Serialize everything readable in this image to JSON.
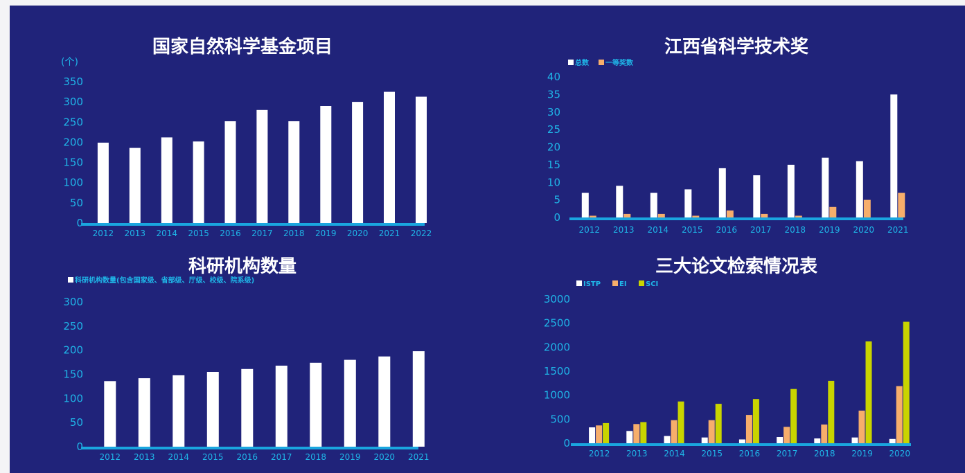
{
  "colors": {
    "background": "#20237a",
    "axis": "#1aa6df",
    "tick_text": "#1fb6e8",
    "white_bar": "#ffffff",
    "orange_bar": "#f7ae6b",
    "green_bar": "#c9d400"
  },
  "chart_data": [
    {
      "type": "bar",
      "title": "国家自然科学基金项目",
      "unit_label": "(个)",
      "categories": [
        "2012",
        "2013",
        "2014",
        "2015",
        "2016",
        "2017",
        "2018",
        "2019",
        "2020",
        "2021",
        "2022"
      ],
      "series": [
        {
          "values": [
            199,
            186,
            212,
            202,
            252,
            280,
            252,
            290,
            300,
            325,
            313
          ]
        }
      ],
      "ylim": [
        0,
        350
      ],
      "yticks": [
        0,
        50,
        100,
        150,
        200,
        250,
        300,
        350
      ],
      "grid": false
    },
    {
      "type": "bar",
      "title": "江西省科学技术奖",
      "categories": [
        "2012",
        "2013",
        "2014",
        "2015",
        "2016",
        "2017",
        "2018",
        "2019",
        "2020",
        "2021"
      ],
      "series": [
        {
          "name": "总数",
          "values": [
            7,
            9,
            7,
            8,
            14,
            12,
            15,
            17,
            16,
            35
          ]
        },
        {
          "name": "一等奖数",
          "values": [
            0.5,
            1,
            1,
            0.5,
            2,
            1,
            0.5,
            3,
            5,
            7
          ]
        }
      ],
      "ylim": [
        0,
        40
      ],
      "yticks": [
        0,
        5,
        10,
        15,
        20,
        25,
        30,
        35,
        40
      ],
      "legend": "top-left",
      "grid": false
    },
    {
      "type": "bar",
      "title": "科研机构数量",
      "categories": [
        "2012",
        "2013",
        "2014",
        "2015",
        "2016",
        "2017",
        "2018",
        "2019",
        "2020",
        "2021"
      ],
      "series": [
        {
          "name": "科研机构数量(包含国家级、省部级、厅级、校级、院系级)",
          "values": [
            136,
            142,
            148,
            155,
            161,
            168,
            174,
            180,
            187,
            198
          ]
        }
      ],
      "ylim": [
        0,
        300
      ],
      "yticks": [
        0,
        50,
        100,
        150,
        200,
        250,
        300
      ],
      "legend": "top-left",
      "grid": false
    },
    {
      "type": "bar",
      "title": "三大论文检索情况表",
      "categories": [
        "2012",
        "2013",
        "2014",
        "2015",
        "2016",
        "2017",
        "2018",
        "2019",
        "2020"
      ],
      "series": [
        {
          "name": "ISTP",
          "values": [
            330,
            255,
            150,
            120,
            80,
            130,
            100,
            120,
            90
          ]
        },
        {
          "name": "EI",
          "values": [
            370,
            400,
            480,
            480,
            590,
            340,
            390,
            680,
            1190
          ]
        },
        {
          "name": "SCI",
          "values": [
            420,
            440,
            870,
            820,
            920,
            1130,
            1300,
            2120,
            2530
          ]
        }
      ],
      "ylim": [
        0,
        3000
      ],
      "yticks": [
        0,
        500,
        1000,
        1500,
        2000,
        2500,
        3000
      ],
      "legend": "top-left",
      "grid": false
    }
  ]
}
